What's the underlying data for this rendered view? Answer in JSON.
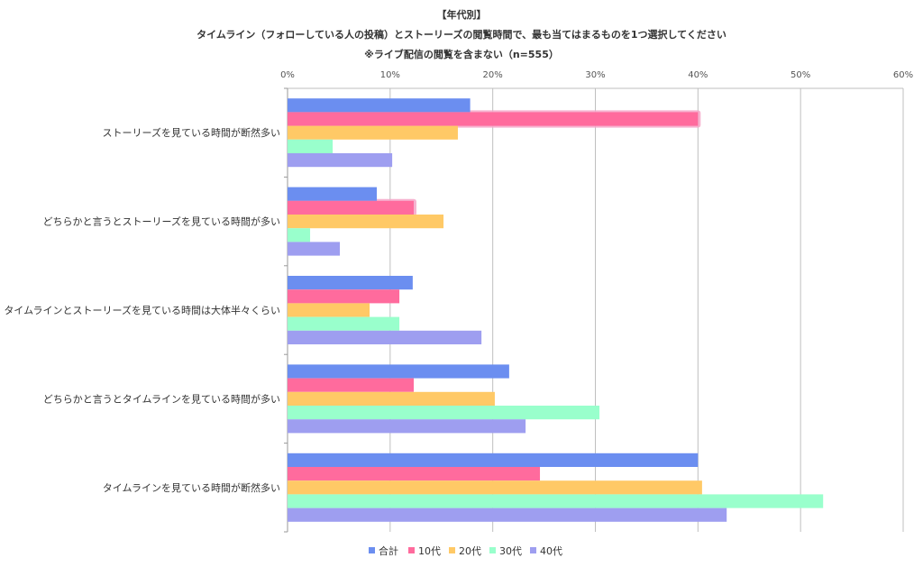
{
  "chart_data": {
    "type": "bar",
    "orientation": "horizontal",
    "title": "【年代別】",
    "subtitle": "タイムライン（フォローしている人の投稿）とストーリーズの閲覧時間で、最も当てはまるものを1つ選択してください",
    "note": "※ライブ配信の閲覧を含まない（n=555）",
    "xlim": [
      0,
      60
    ],
    "x_ticks": [
      "0%",
      "10%",
      "20%",
      "30%",
      "40%",
      "50%",
      "60%"
    ],
    "x_tick_values": [
      0,
      10,
      20,
      30,
      40,
      50,
      60
    ],
    "grid": true,
    "legend_position": "bottom",
    "categories": [
      "ストーリーズを見ている時間が断然多い",
      "どちらかと言うとストーリーズを見ている時間が多い",
      "タイムラインとストーリーズを見ている時間は大体半々くらい",
      "どちらかと言うとタイムラインを見ている時間が多い",
      "タイムラインを見ている時間が断然多い"
    ],
    "series": [
      {
        "name": "合計",
        "color": "#6b8ef0",
        "values": [
          17.8,
          8.7,
          12.2,
          21.6,
          40.0
        ]
      },
      {
        "name": "10代",
        "color": "#ff6b9d",
        "values": [
          40.0,
          12.3,
          10.9,
          12.3,
          24.6
        ],
        "highlight": [
          true,
          true,
          false,
          false,
          false
        ]
      },
      {
        "name": "20代",
        "color": "#ffc966",
        "values": [
          16.6,
          15.2,
          8.0,
          20.2,
          40.4
        ]
      },
      {
        "name": "30代",
        "color": "#99ffcc",
        "values": [
          4.4,
          2.2,
          10.9,
          30.4,
          52.2
        ]
      },
      {
        "name": "40代",
        "color": "#9e9ef0",
        "values": [
          10.2,
          5.1,
          18.9,
          23.2,
          42.8
        ]
      }
    ],
    "highlight_color": "#f4a6c8"
  }
}
